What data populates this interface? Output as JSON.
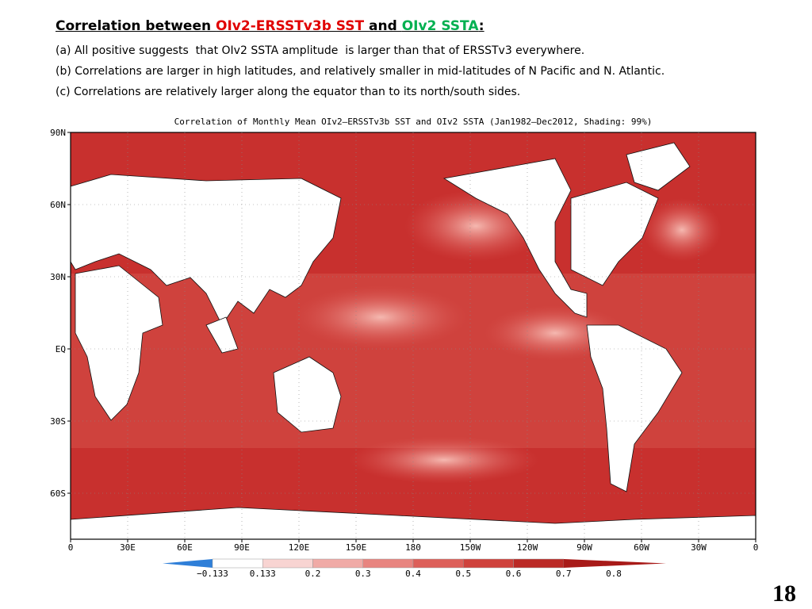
{
  "header": {
    "title_parts": [
      "Correlation between ",
      "OIv2-ERSSTv3b SST ",
      "and ",
      "OIv2 SSTA",
      ":"
    ],
    "lines": [
      "(a) All positive suggests  that OIv2 SSTA amplitude  is larger than that of ERSSTv3 everywhere.",
      "(b) Correlations are larger in high latitudes, and relatively smaller in mid-latitudes of N Pacific and N. Atlantic.",
      "(c) Correlations are relatively larger along the equator than to its north/south sides."
    ]
  },
  "map": {
    "title": "Correlation of Monthly Mean OIv2—ERSSTv3b SST and OIv2 SSTA (Jan1982—Dec2012, Shading: 99%)",
    "lat_labels": [
      "90N",
      "60N",
      "30N",
      "EQ",
      "30S",
      "60S"
    ],
    "lon_labels": [
      "0",
      "30E",
      "60E",
      "90E",
      "120E",
      "150E",
      "180",
      "150W",
      "120W",
      "90W",
      "60W",
      "30W",
      "0"
    ]
  },
  "colorbar": {
    "labels": [
      "−0.133",
      "0.133",
      "0.2",
      "0.3",
      "0.4",
      "0.5",
      "0.6",
      "0.7",
      "0.8"
    ]
  },
  "page_number": "18"
}
